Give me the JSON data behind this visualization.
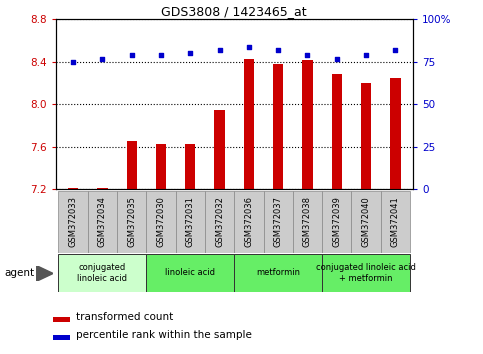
{
  "title": "GDS3808 / 1423465_at",
  "samples": [
    "GSM372033",
    "GSM372034",
    "GSM372035",
    "GSM372030",
    "GSM372031",
    "GSM372032",
    "GSM372036",
    "GSM372037",
    "GSM372038",
    "GSM372039",
    "GSM372040",
    "GSM372041"
  ],
  "transformed_count": [
    7.21,
    7.21,
    7.66,
    7.63,
    7.63,
    7.95,
    8.43,
    8.38,
    8.42,
    8.29,
    8.2,
    8.25
  ],
  "percentile_rank": [
    75,
    77,
    79,
    79,
    80,
    82,
    84,
    82,
    79,
    77,
    79,
    82
  ],
  "ylim_left": [
    7.2,
    8.8
  ],
  "ylim_right": [
    0,
    100
  ],
  "yticks_left": [
    7.2,
    7.6,
    8.0,
    8.4,
    8.8
  ],
  "yticks_right": [
    0,
    25,
    50,
    75,
    100
  ],
  "ytick_labels_right": [
    "0",
    "25",
    "50",
    "75",
    "100%"
  ],
  "bar_color": "#cc0000",
  "dot_color": "#0000cc",
  "groups": [
    {
      "label": "conjugated\nlinoleic acid",
      "start": 0,
      "end": 3,
      "color": "#ccffcc"
    },
    {
      "label": "linoleic acid",
      "start": 3,
      "end": 6,
      "color": "#66ee66"
    },
    {
      "label": "metformin",
      "start": 6,
      "end": 9,
      "color": "#66ee66"
    },
    {
      "label": "conjugated linoleic acid\n+ metformin",
      "start": 9,
      "end": 12,
      "color": "#66ee66"
    }
  ],
  "agent_label": "agent",
  "legend_bar_label": "transformed count",
  "legend_dot_label": "percentile rank within the sample",
  "tick_label_bg": "#cccccc",
  "bar_width": 0.35
}
